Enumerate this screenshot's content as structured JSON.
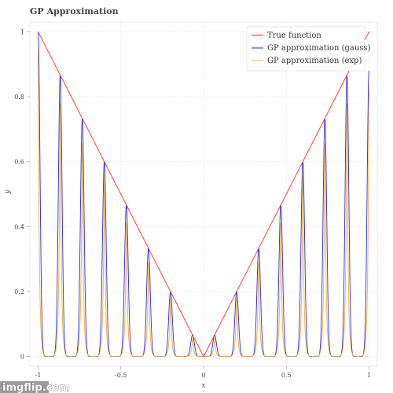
{
  "title": "GP Approximation",
  "watermark": "imgflip.com",
  "chart_data": {
    "type": "line",
    "title": "GP Approximation",
    "xlabel": "x",
    "ylabel": "y",
    "xlim": [
      -1.05,
      1.05
    ],
    "ylim": [
      -0.03,
      1.03
    ],
    "x_ticks": [
      -1,
      -0.5,
      0,
      0.5,
      1
    ],
    "x_tick_labels": [
      "-1",
      "-0.5",
      "0",
      "0.5",
      "1"
    ],
    "y_ticks": [
      0,
      0.2,
      0.4,
      0.6,
      0.8,
      1
    ],
    "y_tick_labels": [
      "0",
      "0.2",
      "0.4",
      "0.6",
      "0.8",
      "1"
    ],
    "grid": true,
    "legend_position": "top-right",
    "peak_x": [
      -1,
      -0.8667,
      -0.7333,
      -0.6,
      -0.4667,
      -0.3333,
      -0.2,
      -0.0667,
      0.0667,
      0.2,
      0.3333,
      0.4667,
      0.6,
      0.7333,
      0.8667,
      1
    ],
    "series": [
      {
        "name": "True function",
        "color": "#ff2a2a",
        "x": [
          -1,
          0,
          1
        ],
        "y": [
          1,
          0,
          1
        ]
      },
      {
        "name": "GP approximation (gauss)",
        "color": "#2a2ad4",
        "peak_y": [
          1,
          0.8667,
          0.7333,
          0.6,
          0.4667,
          0.3333,
          0.2,
          0.0667,
          0.0667,
          0.2,
          0.3333,
          0.4667,
          0.6,
          0.7333,
          0.8667,
          0.88
        ],
        "baseline": 0
      },
      {
        "name": "GP approximation (exp)",
        "color": "#f0b040",
        "peak_y": [
          0.95,
          0.83,
          0.7,
          0.57,
          0.44,
          0.31,
          0.18,
          0.06,
          0.06,
          0.18,
          0.31,
          0.44,
          0.57,
          0.7,
          0.83,
          0.85
        ],
        "baseline": 0
      }
    ]
  }
}
